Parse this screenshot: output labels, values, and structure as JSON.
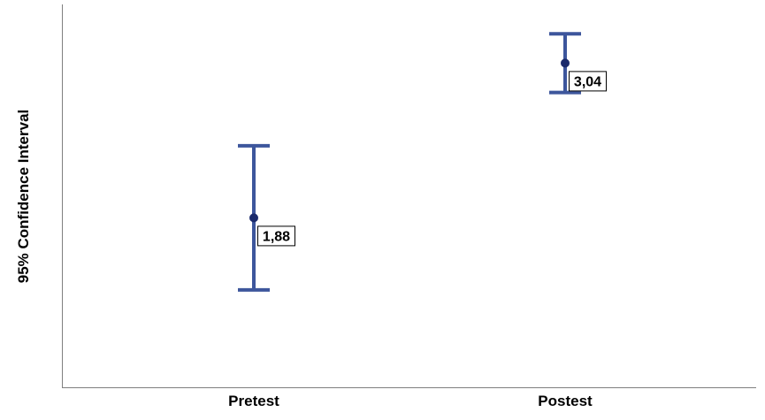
{
  "chart_data": {
    "type": "errorbar",
    "ylabel": "95% Confidence Interval",
    "xlabel": "",
    "categories": [
      "Pretest",
      "Postest"
    ],
    "series": [
      {
        "points": [
          {
            "category": "Pretest",
            "mean": 1.88,
            "lower": 1.34,
            "upper": 2.42,
            "label": "1,88"
          },
          {
            "category": "Postest",
            "mean": 3.04,
            "lower": 2.82,
            "upper": 3.26,
            "label": "3,04"
          }
        ]
      }
    ],
    "ylim": [
      0.61,
      3.48
    ],
    "grid": false,
    "legend": "none",
    "colors": {
      "errorbar": "#3d569c",
      "marker": "#1a2a6c",
      "axis": "#7f7f7f"
    }
  }
}
